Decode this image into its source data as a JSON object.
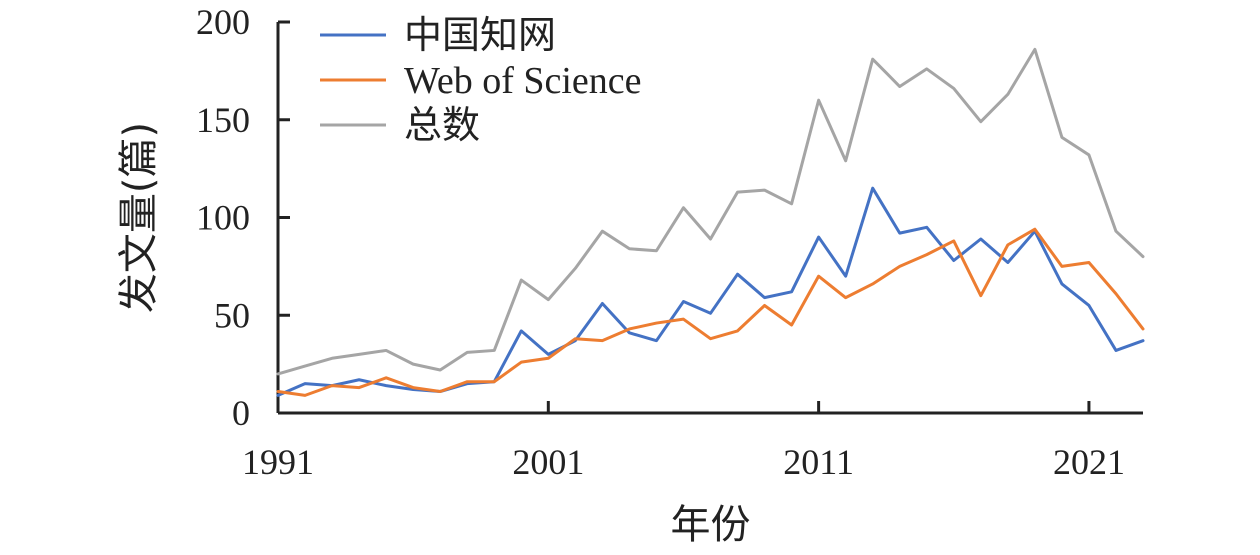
{
  "chart_data": {
    "type": "line",
    "xlabel": "年份",
    "ylabel": "发文量(篇)",
    "xlim": [
      1991,
      2023
    ],
    "ylim": [
      0,
      200
    ],
    "x_ticks": [
      1991,
      2001,
      2011,
      2021
    ],
    "y_ticks": [
      0,
      50,
      100,
      150,
      200
    ],
    "grid": false,
    "legend_position": "top-left",
    "x": [
      1991,
      1992,
      1993,
      1994,
      1995,
      1996,
      1997,
      1998,
      1999,
      2000,
      2001,
      2002,
      2003,
      2004,
      2005,
      2006,
      2007,
      2008,
      2009,
      2010,
      2011,
      2012,
      2013,
      2014,
      2015,
      2016,
      2017,
      2018,
      2019,
      2020,
      2021,
      2022,
      2023
    ],
    "series": [
      {
        "name": "中国知网",
        "color": "#4472c4",
        "values": [
          9,
          15,
          14,
          17,
          14,
          12,
          11,
          15,
          16,
          42,
          30,
          37,
          56,
          41,
          37,
          57,
          51,
          71,
          59,
          62,
          90,
          70,
          115,
          92,
          95,
          78,
          89,
          77,
          93,
          66,
          55,
          32,
          37
        ]
      },
      {
        "name": "Web of Science",
        "color": "#ed7d31",
        "values": [
          11,
          9,
          14,
          13,
          18,
          13,
          11,
          16,
          16,
          26,
          28,
          38,
          37,
          43,
          46,
          48,
          38,
          42,
          55,
          45,
          70,
          59,
          66,
          75,
          81,
          88,
          60,
          86,
          94,
          75,
          77,
          61,
          43
        ]
      },
      {
        "name": "总数",
        "color": "#a5a5a5",
        "values": [
          20,
          24,
          28,
          30,
          32,
          25,
          22,
          31,
          32,
          68,
          58,
          74,
          93,
          84,
          83,
          105,
          89,
          113,
          114,
          107,
          160,
          129,
          181,
          167,
          176,
          166,
          149,
          163,
          186,
          141,
          132,
          93,
          80
        ]
      }
    ]
  }
}
